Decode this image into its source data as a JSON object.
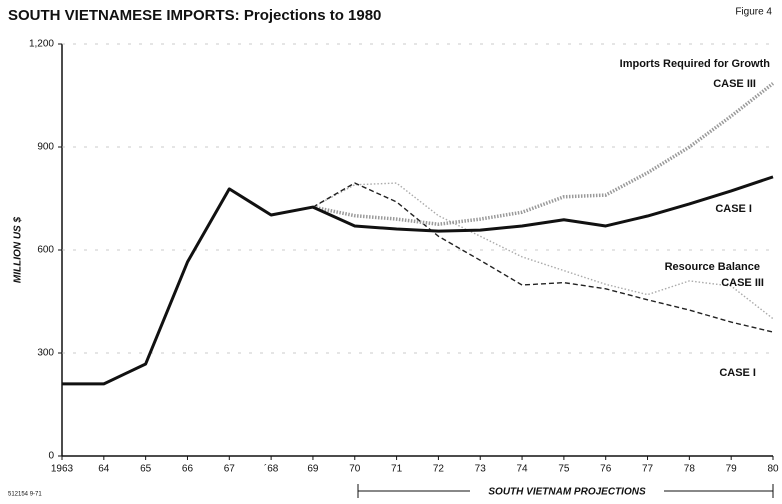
{
  "chart_data": {
    "type": "line",
    "title": "SOUTH VIETNAMESE IMPORTS:  Projections to 1980",
    "figure_label": "Figure 4",
    "y_label": "MILLION US $",
    "categories": [
      "1963",
      "64",
      "65",
      "66",
      "67",
      "´68",
      "69",
      "70",
      "71",
      "72",
      "73",
      "74",
      "75",
      "76",
      "77",
      "78",
      "79",
      "80"
    ],
    "series": [
      {
        "name": "Imports Required for Growth CASE I",
        "color": "#111111",
        "style": "solid",
        "values": [
          210,
          210,
          268,
          565,
          778,
          702,
          725,
          670,
          661,
          655,
          658,
          670,
          688,
          670,
          699,
          734,
          772,
          813
        ]
      },
      {
        "name": "Imports Required for Growth CASE III",
        "color": "#9a9a9a",
        "style": "heavy-dotted",
        "values": [
          null,
          null,
          null,
          null,
          null,
          null,
          725,
          700,
          690,
          675,
          690,
          710,
          755,
          760,
          825,
          900,
          990,
          1085
        ]
      },
      {
        "name": "Resource Balance CASE I",
        "color": "#222222",
        "style": "dashed",
        "values": [
          null,
          null,
          null,
          null,
          null,
          null,
          725,
          795,
          740,
          640,
          570,
          498,
          505,
          487,
          455,
          425,
          390,
          361
        ]
      },
      {
        "name": "Resource Balance CASE III",
        "color": "#aaaaaa",
        "style": "dotted",
        "values": [
          null,
          null,
          null,
          null,
          null,
          null,
          725,
          790,
          795,
          700,
          640,
          580,
          540,
          500,
          470,
          510,
          495,
          400
        ]
      }
    ],
    "annotations": [
      "Imports Required for Growth",
      "CASE III",
      "CASE I",
      "Resource Balance",
      "CASE III",
      "CASE I"
    ],
    "projection_label": "SOUTH VIETNAM  PROJECTIONS",
    "footnote": "512154 9-71",
    "ylim": [
      0,
      1200
    ],
    "yticks": [
      0,
      300,
      600,
      900,
      {
        "value": 1200,
        "label": "1,200"
      }
    ],
    "grid": true
  }
}
